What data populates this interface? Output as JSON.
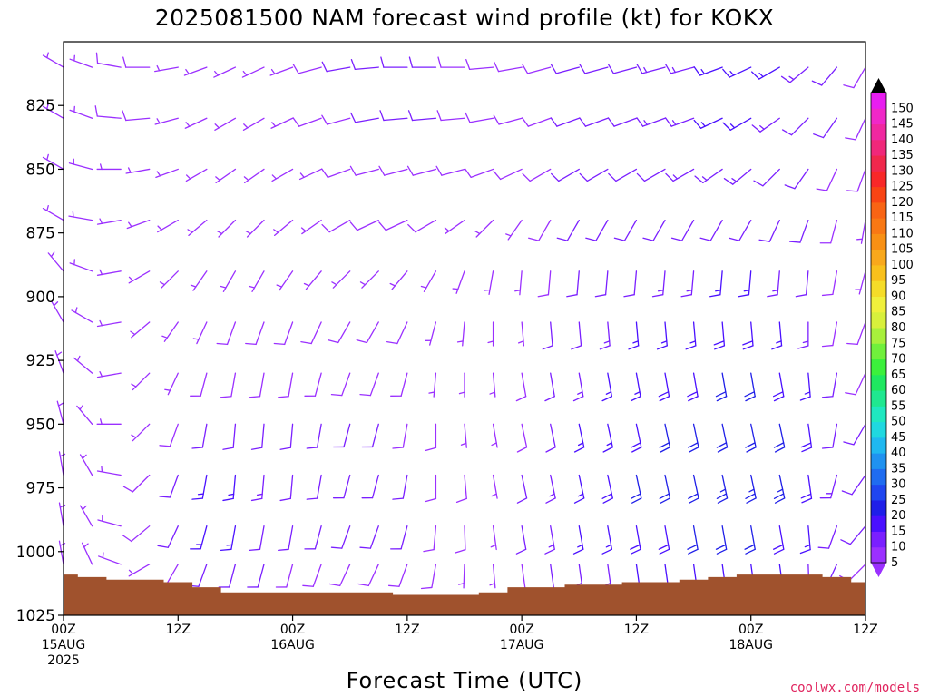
{
  "chart_data": {
    "type": "wind_barb_time_height",
    "title": "2025081500 NAM forecast wind profile (kt) for KOKX",
    "xlabel": "Forecast Time (UTC)",
    "credit": "coolwx.com/models",
    "y_axis": {
      "reversed": true,
      "ylim": [
        1025,
        800
      ],
      "ticks": [
        {
          "value": 825,
          "label": "825"
        },
        {
          "value": 850,
          "label": "850"
        },
        {
          "value": 875,
          "label": "875"
        },
        {
          "value": 900,
          "label": "900"
        },
        {
          "value": 925,
          "label": "925"
        },
        {
          "value": 950,
          "label": "950"
        },
        {
          "value": 975,
          "label": "975"
        },
        {
          "value": 1000,
          "label": "1000"
        },
        {
          "value": 1025,
          "label": "1025"
        }
      ]
    },
    "x_axis": {
      "xlim": [
        0,
        84
      ],
      "ticks": [
        {
          "value": 0,
          "lines": [
            "00Z",
            "15AUG",
            "2025"
          ]
        },
        {
          "value": 12,
          "lines": [
            "12Z"
          ]
        },
        {
          "value": 24,
          "lines": [
            "00Z",
            "16AUG"
          ]
        },
        {
          "value": 36,
          "lines": [
            "12Z"
          ]
        },
        {
          "value": 48,
          "lines": [
            "00Z",
            "17AUG"
          ]
        },
        {
          "value": 60,
          "lines": [
            "12Z"
          ]
        },
        {
          "value": 72,
          "lines": [
            "00Z",
            "18AUG"
          ]
        },
        {
          "value": 84,
          "lines": [
            "12Z"
          ]
        }
      ]
    },
    "colorbar": {
      "units": "kt",
      "values": [
        5,
        10,
        15,
        20,
        25,
        30,
        35,
        40,
        45,
        50,
        55,
        60,
        65,
        70,
        75,
        80,
        85,
        90,
        95,
        100,
        105,
        110,
        115,
        120,
        125,
        130,
        135,
        140,
        145,
        150
      ],
      "colors": [
        "#9b30ff",
        "#7a1fff",
        "#4a10ff",
        "#1f1fe8",
        "#1f46f0",
        "#1f6cf0",
        "#1f92f0",
        "#1fb8f0",
        "#1fd8e0",
        "#1fe8c0",
        "#1fe890",
        "#1fe860",
        "#3cf03c",
        "#70f03c",
        "#a8f03c",
        "#d8f03c",
        "#f0f03c",
        "#f5dc28",
        "#f8c01c",
        "#f8a81c",
        "#f89014",
        "#f87814",
        "#f86414",
        "#f84414",
        "#f82828",
        "#f0284c",
        "#f0287a",
        "#f028a0",
        "#f028c8",
        "#e81ef0"
      ]
    },
    "barbs": {
      "time_hours": [
        0,
        3,
        6,
        9,
        12,
        15,
        18,
        21,
        24,
        27,
        30,
        33,
        36,
        39,
        42,
        45,
        48,
        51,
        54,
        57,
        60,
        63,
        66,
        69,
        72,
        75,
        78,
        81,
        84
      ],
      "pressure_hpa": [
        810,
        830,
        850,
        870,
        890,
        910,
        930,
        950,
        970,
        990,
        1005
      ],
      "speed_kt": [
        [
          6,
          7,
          8,
          8,
          7,
          7,
          6,
          6,
          7,
          8,
          10,
          11,
          11,
          10,
          9,
          8,
          8,
          9,
          10,
          11,
          12,
          13,
          14,
          15,
          16,
          15,
          13,
          10,
          8
        ],
        [
          6,
          7,
          8,
          8,
          7,
          6,
          6,
          6,
          7,
          8,
          9,
          10,
          10,
          10,
          9,
          8,
          8,
          9,
          10,
          11,
          12,
          13,
          14,
          15,
          15,
          14,
          12,
          10,
          8
        ],
        [
          6,
          6,
          7,
          7,
          6,
          6,
          6,
          6,
          7,
          7,
          8,
          9,
          9,
          9,
          8,
          8,
          8,
          9,
          10,
          11,
          12,
          12,
          13,
          13,
          13,
          12,
          11,
          9,
          8
        ],
        [
          6,
          6,
          6,
          6,
          6,
          6,
          6,
          6,
          7,
          7,
          8,
          8,
          8,
          8,
          7,
          6,
          7,
          9,
          10,
          11,
          12,
          12,
          12,
          12,
          12,
          11,
          10,
          8,
          7
        ],
        [
          6,
          6,
          5,
          5,
          6,
          7,
          7,
          7,
          7,
          7,
          7,
          7,
          7,
          7,
          6,
          6,
          7,
          9,
          11,
          12,
          12,
          13,
          14,
          15,
          15,
          14,
          11,
          8,
          7
        ],
        [
          6,
          6,
          5,
          5,
          6,
          7,
          8,
          8,
          8,
          8,
          8,
          8,
          8,
          7,
          6,
          6,
          7,
          10,
          12,
          14,
          15,
          16,
          17,
          18,
          18,
          17,
          14,
          9,
          8
        ],
        [
          6,
          6,
          5,
          6,
          7,
          8,
          9,
          9,
          9,
          9,
          9,
          9,
          8,
          7,
          6,
          6,
          8,
          11,
          14,
          16,
          17,
          18,
          19,
          20,
          20,
          19,
          16,
          11,
          9
        ],
        [
          6,
          6,
          6,
          7,
          9,
          11,
          12,
          11,
          10,
          10,
          10,
          10,
          9,
          8,
          7,
          6,
          9,
          12,
          15,
          17,
          19,
          20,
          21,
          22,
          22,
          21,
          18,
          12,
          10
        ],
        [
          6,
          6,
          7,
          8,
          12,
          15,
          16,
          13,
          11,
          11,
          11,
          11,
          10,
          9,
          8,
          7,
          10,
          13,
          16,
          18,
          20,
          21,
          22,
          23,
          23,
          23,
          19,
          13,
          10
        ],
        [
          6,
          6,
          7,
          8,
          12,
          15,
          15,
          12,
          11,
          11,
          11,
          11,
          10,
          9,
          8,
          7,
          10,
          13,
          15,
          17,
          18,
          19,
          20,
          20,
          20,
          19,
          17,
          12,
          10
        ],
        [
          6,
          6,
          6,
          7,
          9,
          11,
          11,
          10,
          9,
          9,
          9,
          9,
          9,
          8,
          7,
          7,
          9,
          11,
          13,
          14,
          15,
          15,
          15,
          15,
          15,
          15,
          13,
          10,
          9
        ]
      ],
      "direction_deg": [
        [
          300,
          290,
          280,
          270,
          260,
          250,
          245,
          245,
          250,
          255,
          260,
          265,
          270,
          270,
          270,
          265,
          260,
          255,
          255,
          255,
          255,
          255,
          255,
          250,
          245,
          240,
          230,
          220,
          210
        ],
        [
          300,
          290,
          275,
          265,
          255,
          245,
          240,
          240,
          245,
          250,
          255,
          260,
          265,
          265,
          265,
          260,
          255,
          250,
          250,
          250,
          250,
          250,
          250,
          245,
          240,
          235,
          225,
          215,
          205
        ],
        [
          300,
          285,
          270,
          260,
          250,
          240,
          235,
          235,
          240,
          245,
          250,
          255,
          255,
          255,
          255,
          250,
          245,
          240,
          240,
          240,
          240,
          240,
          240,
          235,
          230,
          225,
          215,
          205,
          200
        ],
        [
          300,
          280,
          260,
          250,
          240,
          230,
          225,
          225,
          230,
          235,
          240,
          245,
          245,
          240,
          235,
          225,
          215,
          210,
          210,
          210,
          210,
          210,
          210,
          210,
          210,
          205,
          200,
          195,
          190
        ],
        [
          320,
          290,
          260,
          240,
          225,
          215,
          210,
          210,
          215,
          220,
          225,
          225,
          220,
          210,
          200,
          190,
          185,
          185,
          185,
          185,
          185,
          185,
          185,
          185,
          185,
          185,
          185,
          190,
          195
        ],
        [
          330,
          300,
          260,
          230,
          215,
          205,
          200,
          200,
          200,
          205,
          210,
          210,
          205,
          195,
          185,
          180,
          175,
          175,
          175,
          175,
          175,
          175,
          175,
          175,
          175,
          175,
          180,
          190,
          200
        ],
        [
          340,
          310,
          260,
          225,
          205,
          195,
          190,
          190,
          190,
          195,
          200,
          200,
          195,
          185,
          180,
          175,
          170,
          170,
          170,
          170,
          170,
          170,
          170,
          170,
          170,
          170,
          175,
          190,
          205
        ],
        [
          345,
          320,
          270,
          225,
          200,
          190,
          185,
          185,
          185,
          190,
          195,
          195,
          190,
          180,
          175,
          170,
          168,
          168,
          168,
          168,
          168,
          168,
          168,
          168,
          168,
          168,
          172,
          190,
          210
        ],
        [
          350,
          330,
          280,
          225,
          200,
          190,
          185,
          185,
          185,
          190,
          195,
          195,
          190,
          180,
          175,
          170,
          168,
          168,
          168,
          168,
          168,
          168,
          168,
          168,
          168,
          168,
          172,
          195,
          215
        ],
        [
          350,
          330,
          285,
          230,
          205,
          195,
          190,
          190,
          190,
          195,
          200,
          200,
          195,
          185,
          178,
          172,
          170,
          170,
          170,
          170,
          170,
          170,
          170,
          170,
          170,
          170,
          175,
          200,
          220
        ],
        [
          350,
          335,
          290,
          240,
          210,
          200,
          195,
          195,
          195,
          200,
          205,
          205,
          200,
          190,
          182,
          175,
          172,
          172,
          172,
          172,
          172,
          172,
          172,
          172,
          172,
          172,
          178,
          205,
          225
        ]
      ]
    },
    "terrain": {
      "color": "#a0522d",
      "surface_pressure_hpa": [
        1009,
        1010,
        1011,
        1011,
        1012,
        1014,
        1016,
        1016,
        1016,
        1016,
        1016,
        1016,
        1017,
        1017,
        1017,
        1016,
        1014,
        1014,
        1013,
        1013,
        1012,
        1012,
        1011,
        1010,
        1009,
        1009,
        1009,
        1010,
        1012
      ]
    }
  }
}
